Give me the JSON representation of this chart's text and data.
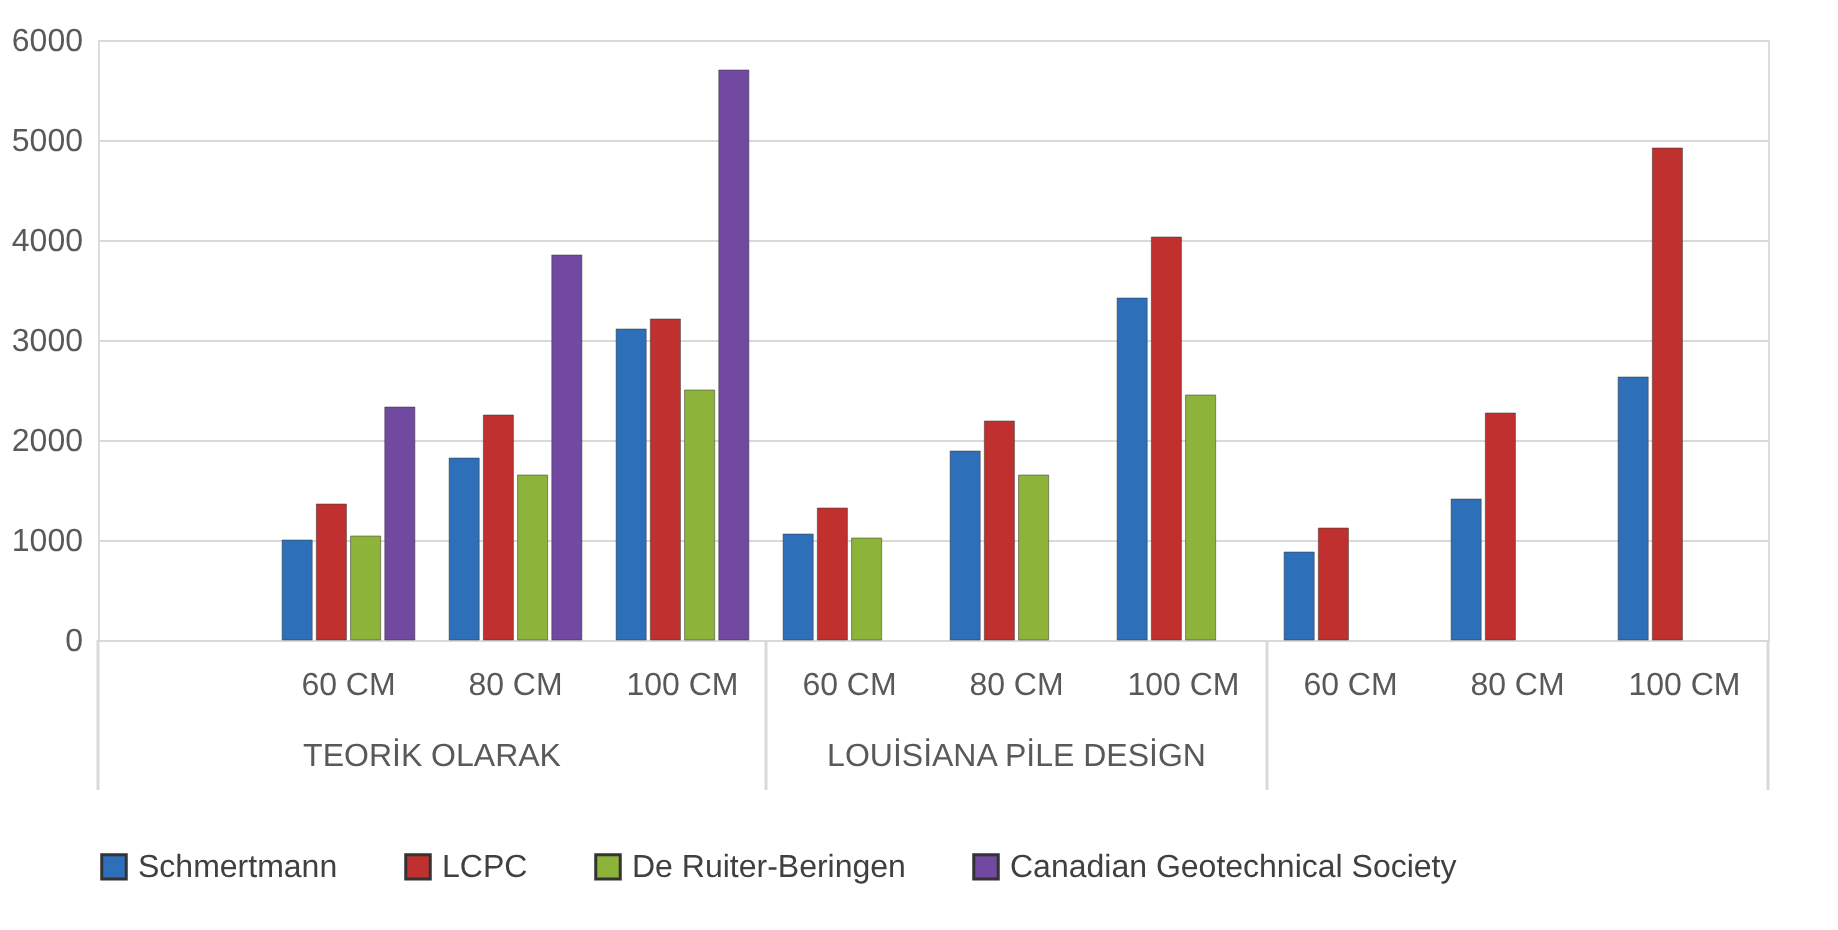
{
  "chart_data": {
    "type": "bar",
    "categories": [
      null,
      "60 CM",
      "80 CM",
      "100 CM",
      "60 CM",
      "80 CM",
      "100 CM",
      "60 CM",
      "80 CM",
      "100 CM"
    ],
    "series": [
      {
        "name": "Schmertmann",
        "color": "#2e6fba",
        "values": [
          null,
          1000,
          1820,
          3110,
          1060,
          1890,
          3420,
          880,
          1410,
          2630
        ]
      },
      {
        "name": "LCPC",
        "color": "#c0302e",
        "values": [
          null,
          1360,
          2250,
          3210,
          1320,
          2190,
          4030,
          1120,
          2270,
          4920
        ]
      },
      {
        "name": "De Ruiter-Beringen",
        "color": "#8db33a",
        "values": [
          null,
          1040,
          1650,
          2500,
          1020,
          1650,
          2450,
          null,
          null,
          null
        ]
      },
      {
        "name": "Canadian Geotechnical Society",
        "color": "#7149a0",
        "values": [
          null,
          2330,
          3850,
          5700,
          null,
          null,
          null,
          null,
          null,
          null
        ]
      }
    ],
    "annotations": [
      "TEORİK OLARAK",
      "LOUİSİANA PİLE DESİGN"
    ],
    "ylim": [
      0,
      6000
    ],
    "yticks": [
      0,
      1000,
      2000,
      3000,
      4000,
      5000,
      6000
    ],
    "grid": "y",
    "legend": "bottom"
  }
}
